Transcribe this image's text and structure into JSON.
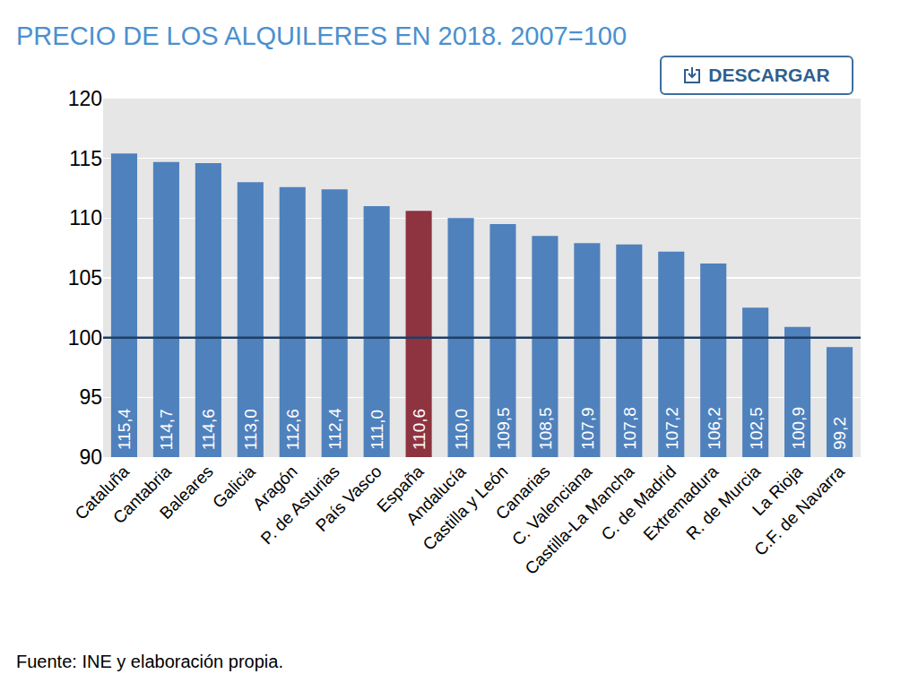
{
  "chart_data": {
    "type": "bar",
    "title": "PRECIO DE LOS ALQUILERES EN 2018. 2007=100",
    "button": "DESCARGAR",
    "source": "Fuente: INE y elaboración propia.",
    "categories": [
      "Cataluña",
      "Cantabria",
      "Baleares",
      "Galicia",
      "Aragón",
      "P. de Asturias",
      "País Vasco",
      "España",
      "Andalucía",
      "Castilla y León",
      "Canarias",
      "C. Valenciana",
      "Castilla-La Mancha",
      "C. de Madrid",
      "Extremadura",
      "R. de Murcia",
      "La Rioja",
      "C.F. de Navarra"
    ],
    "values": [
      115.4,
      114.7,
      114.6,
      113.0,
      112.6,
      112.4,
      111.0,
      110.6,
      110.0,
      109.5,
      108.5,
      107.9,
      107.8,
      107.2,
      106.2,
      102.5,
      100.9,
      99.2
    ],
    "value_labels": [
      "115,4",
      "114,7",
      "114,6",
      "113,0",
      "112,6",
      "112,4",
      "111,0",
      "110,6",
      "110,0",
      "109,5",
      "108,5",
      "107,9",
      "107,8",
      "107,2",
      "106,2",
      "102,5",
      "100,9",
      "99,2"
    ],
    "colors": [
      "#4f81bd",
      "#4f81bd",
      "#4f81bd",
      "#4f81bd",
      "#4f81bd",
      "#4f81bd",
      "#4f81bd",
      "#8e3340",
      "#4f81bd",
      "#4f81bd",
      "#4f81bd",
      "#4f81bd",
      "#4f81bd",
      "#4f81bd",
      "#4f81bd",
      "#4f81bd",
      "#4f81bd",
      "#4f81bd"
    ],
    "ylim": [
      90,
      120
    ],
    "yticks": [
      90,
      95,
      100,
      105,
      110,
      115,
      120
    ],
    "grid": true,
    "data_labels": true,
    "reference_line": 100
  }
}
